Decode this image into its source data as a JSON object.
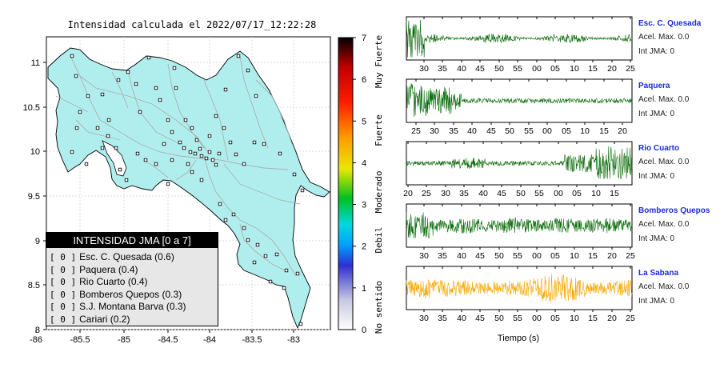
{
  "title": "Intensidad calculada el 2022/07/17_12:22:28",
  "map": {
    "x_ticks": [
      "-86",
      "-85.5",
      "-85",
      "-84.5",
      "-84",
      "-83.5",
      "-83"
    ],
    "y_ticks": [
      "11",
      "10.5",
      "10",
      "9.5",
      "9",
      "8.5",
      "8"
    ],
    "land_color": "#b0eeee",
    "road_color": "#a9b0b0"
  },
  "legend": {
    "header": "INTENSIDAD JMA [0 a 7]",
    "items": [
      {
        "level": "[ 0 ]",
        "label": "Esc. C. Quesada (0.6)"
      },
      {
        "level": "[ 0 ]",
        "label": "Paquera (0.4)"
      },
      {
        "level": "[ 0 ]",
        "label": "Rio Cuarto (0.4)"
      },
      {
        "level": "[ 0 ]",
        "label": "Bomberos Quepos (0.3)"
      },
      {
        "level": "[ 0 ]",
        "label": "S.J. Montana Barva (0.3)"
      },
      {
        "level": "[ 0 ]",
        "label": "Cariari (0.2)"
      }
    ]
  },
  "colorbar": {
    "ticks": [
      "0",
      "1",
      "2",
      "3",
      "4",
      "5",
      "6",
      "7"
    ],
    "categories": [
      "No sentido",
      "Debil",
      "Moderado",
      "Fuerte",
      "Muy Fuerte"
    ]
  },
  "traces": [
    {
      "name": "Esc. C. Quesada",
      "acel": "Acel. Max. 0.0",
      "int": "Int JMA: 0",
      "color": "#0a6b0a",
      "ticks": [
        "30",
        "35",
        "40",
        "45",
        "50",
        "55",
        "00",
        "05",
        "10",
        "15",
        "20",
        "25"
      ]
    },
    {
      "name": "Paquera",
      "acel": "Acel. Max. 0.0",
      "int": "Int JMA: 0",
      "color": "#0a6b0a",
      "ticks": [
        "25",
        "30",
        "35",
        "40",
        "45",
        "50",
        "55",
        "00",
        "05",
        "10",
        "15",
        "20"
      ]
    },
    {
      "name": "Rio Cuarto",
      "acel": "Acel. Max. 0.0",
      "int": "Int JMA: 0",
      "color": "#0a6b0a",
      "ticks": [
        "20",
        "25",
        "30",
        "35",
        "40",
        "45",
        "50",
        "55",
        "00",
        "05",
        "10",
        "15"
      ]
    },
    {
      "name": "Bomberos Quepos",
      "acel": "Acel. Max. 0.0",
      "int": "Int JMA: 0",
      "color": "#0a6b0a",
      "ticks": [
        "30",
        "35",
        "40",
        "45",
        "50",
        "55",
        "00",
        "05",
        "10",
        "15",
        "20",
        "25"
      ]
    },
    {
      "name": "La Sabana",
      "acel": "Acel. Max. 0.0",
      "int": "Int JMA: 0",
      "color": "#f5a800",
      "ticks": [
        "30",
        "35",
        "40",
        "45",
        "50",
        "55",
        "00",
        "05",
        "10",
        "15",
        "20",
        "25"
      ]
    }
  ],
  "traces_xlabel": "Tiempo (s)"
}
